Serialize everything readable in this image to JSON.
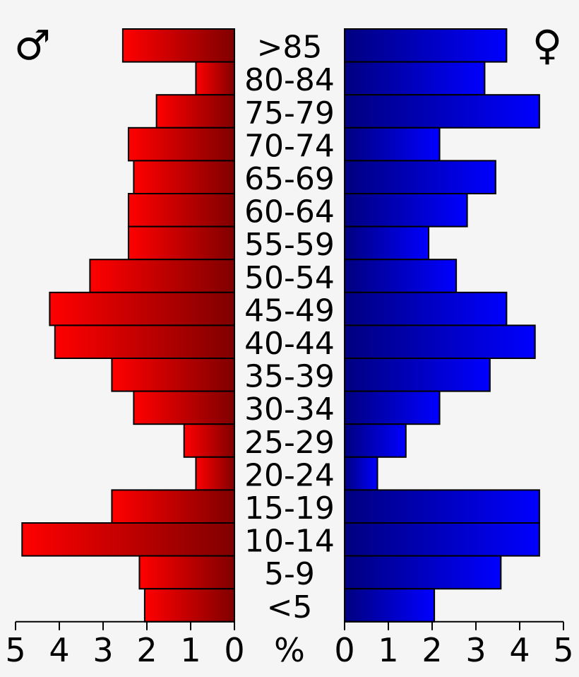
{
  "chart_data": {
    "type": "bar",
    "orientation": "horizontal-population-pyramid",
    "categories": [
      ">85",
      "80-84",
      "75-79",
      "70-74",
      "65-69",
      "60-64",
      "55-59",
      "50-54",
      "45-49",
      "40-44",
      "35-39",
      "30-34",
      "25-29",
      "20-24",
      "15-19",
      "10-14",
      "5-9",
      "<5"
    ],
    "series": [
      {
        "name": "♂",
        "side": "left",
        "color_light": "#ff0000",
        "color_dark": "#800000",
        "values": [
          2.55,
          0.88,
          1.78,
          2.42,
          2.3,
          2.42,
          2.42,
          3.3,
          4.22,
          4.1,
          2.8,
          2.3,
          1.15,
          0.88,
          2.8,
          4.85,
          2.17,
          2.05
        ]
      },
      {
        "name": "♀",
        "side": "right",
        "color_light": "#0000ff",
        "color_dark": "#000080",
        "values": [
          3.7,
          3.2,
          4.45,
          2.17,
          3.45,
          2.8,
          1.92,
          2.55,
          3.7,
          4.35,
          3.32,
          2.17,
          1.4,
          0.75,
          4.45,
          4.45,
          3.57,
          2.05
        ]
      }
    ],
    "xlim": [
      0,
      5
    ],
    "x_ticks": [
      "5",
      "4",
      "3",
      "2",
      "1",
      "0",
      "0",
      "1",
      "2",
      "3",
      "4",
      "5"
    ],
    "x_unit": "%"
  }
}
